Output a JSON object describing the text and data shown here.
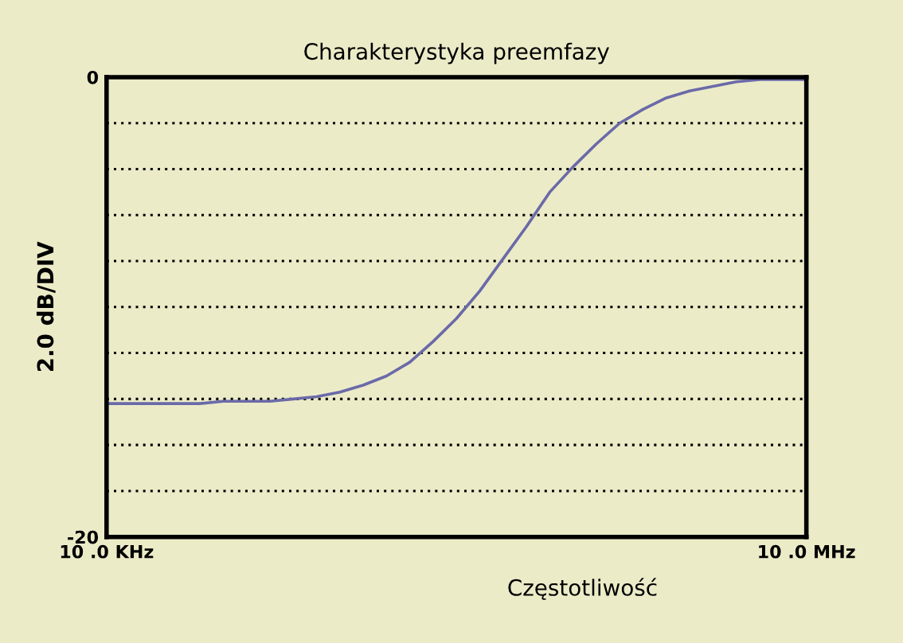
{
  "chart_data": {
    "type": "line",
    "title": "Charakterystyka preemfazy",
    "xlabel": "Częstotliwość",
    "ylabel": "2.0 dB/DIV",
    "grid": "y",
    "categories": [
      "10 .0 KHz",
      null,
      null,
      null,
      null,
      null,
      null,
      null,
      null,
      null,
      null,
      null,
      null,
      null,
      null,
      null,
      null,
      null,
      null,
      null,
      null,
      null,
      null,
      null,
      null,
      null,
      null,
      null,
      null,
      null,
      "10 .0 MHz"
    ],
    "ylim": [
      -20,
      0
    ],
    "yticks": [
      -20,
      {
        "value": -18,
        "label": null
      },
      {
        "value": -16,
        "label": null
      },
      {
        "value": -14,
        "label": null
      },
      {
        "value": -12,
        "label": null
      },
      {
        "value": -10,
        "label": null
      },
      {
        "value": -8,
        "label": null
      },
      {
        "value": -6,
        "label": null
      },
      {
        "value": -4,
        "label": null
      },
      {
        "value": -2,
        "label": null
      },
      0
    ],
    "series": [
      {
        "color": "#6a6aa8",
        "values": [
          -14.2,
          -14.2,
          -14.2,
          -14.2,
          -14.2,
          -14.1,
          -14.1,
          -14.1,
          -14.0,
          -13.9,
          -13.7,
          -13.4,
          -13.0,
          -12.4,
          -11.5,
          -10.5,
          -9.3,
          -7.9,
          -6.5,
          -5.0,
          -3.9,
          -2.9,
          -2.0,
          -1.4,
          -0.9,
          -0.6,
          -0.4,
          -0.2,
          -0.1,
          -0.1,
          -0.1
        ]
      }
    ]
  }
}
